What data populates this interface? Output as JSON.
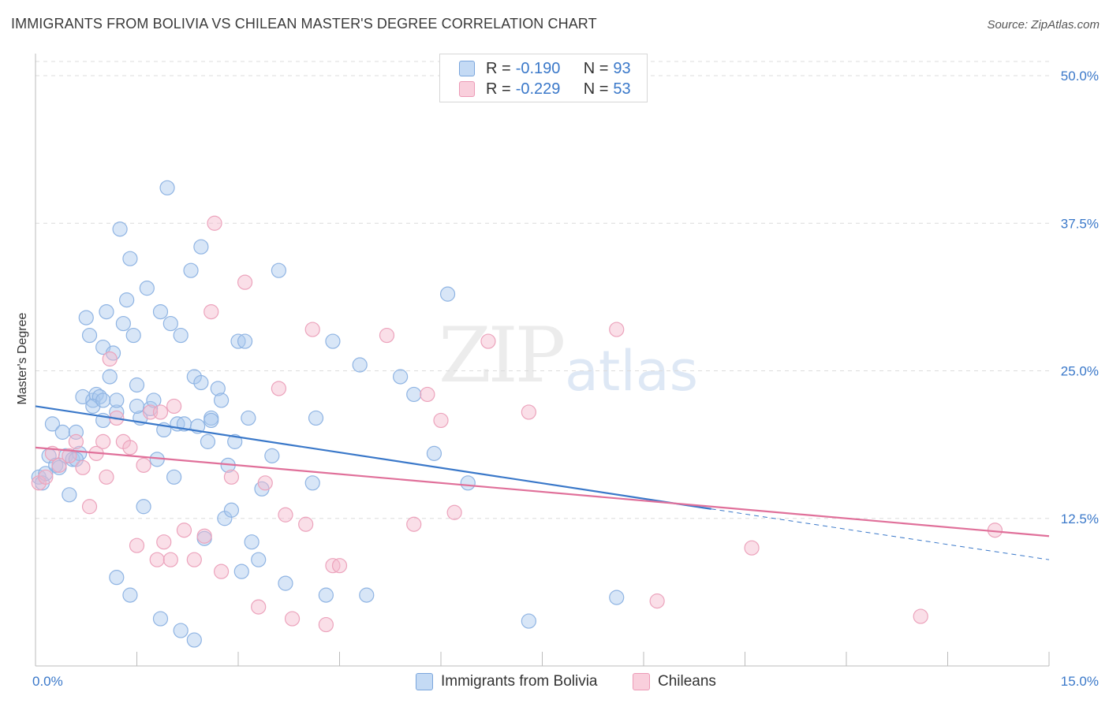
{
  "header": {
    "title": "IMMIGRANTS FROM BOLIVIA VS CHILEAN MASTER'S DEGREE CORRELATION CHART",
    "source": "Source: ZipAtlas.com"
  },
  "watermark": {
    "zip": "ZIP",
    "atlas": "atlas"
  },
  "legend_top": {
    "rows": [
      {
        "r_label": "R =",
        "r_value": "-0.190",
        "n_label": "N =",
        "n_value": "93"
      },
      {
        "r_label": "R =",
        "r_value": "-0.229",
        "n_label": "N =",
        "n_value": "53"
      }
    ]
  },
  "legend_bottom": {
    "items": [
      {
        "label": "Immigrants from Bolivia"
      },
      {
        "label": "Chileans"
      }
    ]
  },
  "chart_data": {
    "type": "scatter",
    "title": "IMMIGRANTS FROM BOLIVIA VS CHILEAN MASTER'S DEGREE CORRELATION CHART",
    "xlabel": "",
    "ylabel": "Master's Degree",
    "xlim": [
      0,
      15
    ],
    "ylim": [
      0,
      50
    ],
    "x_tick_labels": [
      "0.0%",
      "15.0%"
    ],
    "y_tick_labels": [
      "12.5%",
      "25.0%",
      "37.5%",
      "50.0%"
    ],
    "y_ticks": [
      12.5,
      25,
      37.5,
      50
    ],
    "grid": true,
    "colors": {
      "bolivia": "#3a78c9",
      "chileans": "#e0709a",
      "bolivia_fill": "#a9c8ee",
      "chileans_fill": "#f5b9cc"
    },
    "series": [
      {
        "name": "Immigrants from Bolivia",
        "color": "#3a78c9",
        "trend": {
          "x": [
            0,
            10.0
          ],
          "y": [
            22.0,
            13.3
          ],
          "dashed_to": [
            15.0,
            9.0
          ]
        },
        "points": [
          [
            0.05,
            16.0
          ],
          [
            0.1,
            15.5
          ],
          [
            0.15,
            16.3
          ],
          [
            0.2,
            17.8
          ],
          [
            0.25,
            20.5
          ],
          [
            0.3,
            17.0
          ],
          [
            0.35,
            16.8
          ],
          [
            0.4,
            19.8
          ],
          [
            0.45,
            17.8
          ],
          [
            0.5,
            14.5
          ],
          [
            0.55,
            17.5
          ],
          [
            0.6,
            19.8
          ],
          [
            0.65,
            18.0
          ],
          [
            0.7,
            22.8
          ],
          [
            0.75,
            29.5
          ],
          [
            0.8,
            28.0
          ],
          [
            0.85,
            22.5
          ],
          [
            0.9,
            23.0
          ],
          [
            0.95,
            22.8
          ],
          [
            1.0,
            20.8
          ],
          [
            1.0,
            27.0
          ],
          [
            1.05,
            30.0
          ],
          [
            1.1,
            24.5
          ],
          [
            1.15,
            26.5
          ],
          [
            1.2,
            21.5
          ],
          [
            1.25,
            37.0
          ],
          [
            1.3,
            29.0
          ],
          [
            1.35,
            31.0
          ],
          [
            1.4,
            34.5
          ],
          [
            1.45,
            28.0
          ],
          [
            1.5,
            23.8
          ],
          [
            1.55,
            21.0
          ],
          [
            1.6,
            13.5
          ],
          [
            1.65,
            32.0
          ],
          [
            1.7,
            21.8
          ],
          [
            1.75,
            22.5
          ],
          [
            1.8,
            17.5
          ],
          [
            1.85,
            30.0
          ],
          [
            1.9,
            20.0
          ],
          [
            1.95,
            40.5
          ],
          [
            2.0,
            29.0
          ],
          [
            2.05,
            16.0
          ],
          [
            2.1,
            20.5
          ],
          [
            2.15,
            28.0
          ],
          [
            2.2,
            20.5
          ],
          [
            2.3,
            33.5
          ],
          [
            2.35,
            24.5
          ],
          [
            2.4,
            20.3
          ],
          [
            2.45,
            35.5
          ],
          [
            2.5,
            10.8
          ],
          [
            2.55,
            19.0
          ],
          [
            2.6,
            21.0
          ],
          [
            2.7,
            23.5
          ],
          [
            2.75,
            22.5
          ],
          [
            2.8,
            12.5
          ],
          [
            2.85,
            17.0
          ],
          [
            2.9,
            13.2
          ],
          [
            2.95,
            19.0
          ],
          [
            3.0,
            27.5
          ],
          [
            3.1,
            27.5
          ],
          [
            3.15,
            21.0
          ],
          [
            3.2,
            10.5
          ],
          [
            3.3,
            9.0
          ],
          [
            3.35,
            15.0
          ],
          [
            3.5,
            17.8
          ],
          [
            3.6,
            33.5
          ],
          [
            3.7,
            7.0
          ],
          [
            4.1,
            15.5
          ],
          [
            4.15,
            21.0
          ],
          [
            4.3,
            6.0
          ],
          [
            4.4,
            27.5
          ],
          [
            4.8,
            25.5
          ],
          [
            4.9,
            6.0
          ],
          [
            5.4,
            24.5
          ],
          [
            5.6,
            23.0
          ],
          [
            5.9,
            18.0
          ],
          [
            6.1,
            31.5
          ],
          [
            6.4,
            15.5
          ],
          [
            7.3,
            3.8
          ],
          [
            8.6,
            5.8
          ],
          [
            1.2,
            7.5
          ],
          [
            1.4,
            6.0
          ],
          [
            1.85,
            4.0
          ],
          [
            2.15,
            3.0
          ],
          [
            2.35,
            2.2
          ],
          [
            1.2,
            22.5
          ],
          [
            1.5,
            22.0
          ],
          [
            2.45,
            24.0
          ],
          [
            2.6,
            20.8
          ],
          [
            3.05,
            8.0
          ],
          [
            0.6,
            17.5
          ],
          [
            0.85,
            22.0
          ],
          [
            1.0,
            22.5
          ]
        ]
      },
      {
        "name": "Chileans",
        "color": "#e0709a",
        "trend": {
          "x": [
            0,
            15.0
          ],
          "y": [
            18.5,
            11.0
          ]
        },
        "points": [
          [
            0.05,
            15.5
          ],
          [
            0.15,
            16.0
          ],
          [
            0.25,
            18.0
          ],
          [
            0.35,
            17.0
          ],
          [
            0.5,
            17.8
          ],
          [
            0.6,
            19.0
          ],
          [
            0.7,
            16.8
          ],
          [
            0.8,
            13.5
          ],
          [
            0.9,
            18.0
          ],
          [
            1.0,
            19.0
          ],
          [
            1.05,
            16.0
          ],
          [
            1.1,
            26.0
          ],
          [
            1.2,
            21.0
          ],
          [
            1.3,
            19.0
          ],
          [
            1.4,
            18.5
          ],
          [
            1.5,
            10.2
          ],
          [
            1.6,
            17.0
          ],
          [
            1.7,
            21.5
          ],
          [
            1.8,
            9.0
          ],
          [
            1.85,
            21.5
          ],
          [
            1.9,
            10.5
          ],
          [
            2.0,
            9.0
          ],
          [
            2.05,
            22.0
          ],
          [
            2.2,
            11.5
          ],
          [
            2.35,
            9.0
          ],
          [
            2.5,
            11.0
          ],
          [
            2.6,
            30.0
          ],
          [
            2.65,
            37.5
          ],
          [
            2.75,
            8.0
          ],
          [
            2.9,
            16.0
          ],
          [
            3.1,
            32.5
          ],
          [
            3.3,
            5.0
          ],
          [
            3.4,
            15.5
          ],
          [
            3.6,
            23.5
          ],
          [
            3.7,
            12.8
          ],
          [
            3.8,
            4.0
          ],
          [
            4.0,
            12.0
          ],
          [
            4.1,
            28.5
          ],
          [
            4.3,
            3.5
          ],
          [
            4.4,
            8.5
          ],
          [
            4.5,
            8.5
          ],
          [
            5.2,
            28.0
          ],
          [
            5.6,
            12.0
          ],
          [
            5.8,
            23.0
          ],
          [
            6.0,
            20.8
          ],
          [
            6.2,
            13.0
          ],
          [
            6.7,
            27.5
          ],
          [
            7.3,
            21.5
          ],
          [
            8.6,
            28.5
          ],
          [
            9.2,
            5.5
          ],
          [
            10.6,
            10.0
          ],
          [
            13.1,
            4.2
          ],
          [
            14.2,
            11.5
          ]
        ]
      }
    ]
  }
}
